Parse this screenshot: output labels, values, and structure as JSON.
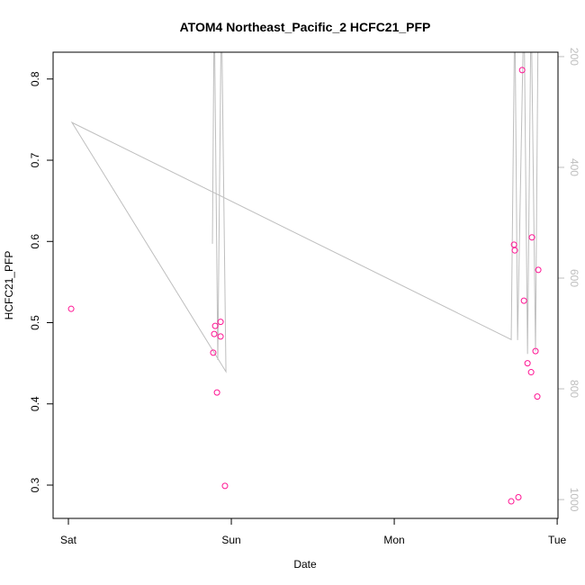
{
  "chart_data": {
    "type": "scatter",
    "title": "ATOM4 Northeast_Pacific_2 HCFC21_PFP",
    "xlabel": "Date",
    "ylabel": "HCFC21_PFP",
    "x_ticks": [
      {
        "v": 0,
        "label": "Sat"
      },
      {
        "v": 1,
        "label": "Sun"
      },
      {
        "v": 2,
        "label": "Mon"
      },
      {
        "v": 3,
        "label": "Tue"
      }
    ],
    "y_ticks": [
      0.3,
      0.4,
      0.5,
      0.6,
      0.7,
      0.8
    ],
    "y2_ticks": [
      200,
      400,
      600,
      800,
      1000
    ],
    "xlim": [
      0,
      3.005
    ],
    "ylim": [
      0.259,
      0.833
    ],
    "y2lim": [
      1034,
      192
    ],
    "point_color": "#ff1493",
    "line_color": "#bebebe",
    "points": [
      [
        0.017,
        0.517
      ],
      [
        0.889,
        0.463
      ],
      [
        0.895,
        0.486
      ],
      [
        0.901,
        0.496
      ],
      [
        0.934,
        0.501
      ],
      [
        0.934,
        0.483
      ],
      [
        0.912,
        0.414
      ],
      [
        0.961,
        0.299
      ],
      [
        2.718,
        0.28
      ],
      [
        2.762,
        0.285
      ],
      [
        2.735,
        0.596
      ],
      [
        2.74,
        0.589
      ],
      [
        2.785,
        0.811
      ],
      [
        2.796,
        0.527
      ],
      [
        2.818,
        0.45
      ],
      [
        2.84,
        0.439
      ],
      [
        2.845,
        0.605
      ],
      [
        2.867,
        0.465
      ],
      [
        2.878,
        0.409
      ],
      [
        2.884,
        0.565
      ]
    ],
    "altitude_line": [
      [
        0.884,
        538
      ],
      [
        0.895,
        100
      ],
      [
        0.917,
        748
      ],
      [
        0.939,
        100
      ],
      [
        0.967,
        769
      ],
      [
        0.022,
        319
      ],
      [
        2.718,
        711
      ],
      [
        2.74,
        100
      ],
      [
        2.757,
        712
      ],
      [
        2.796,
        100
      ],
      [
        2.818,
        737
      ],
      [
        2.84,
        100
      ],
      [
        2.867,
        732
      ],
      [
        2.884,
        100
      ]
    ]
  }
}
